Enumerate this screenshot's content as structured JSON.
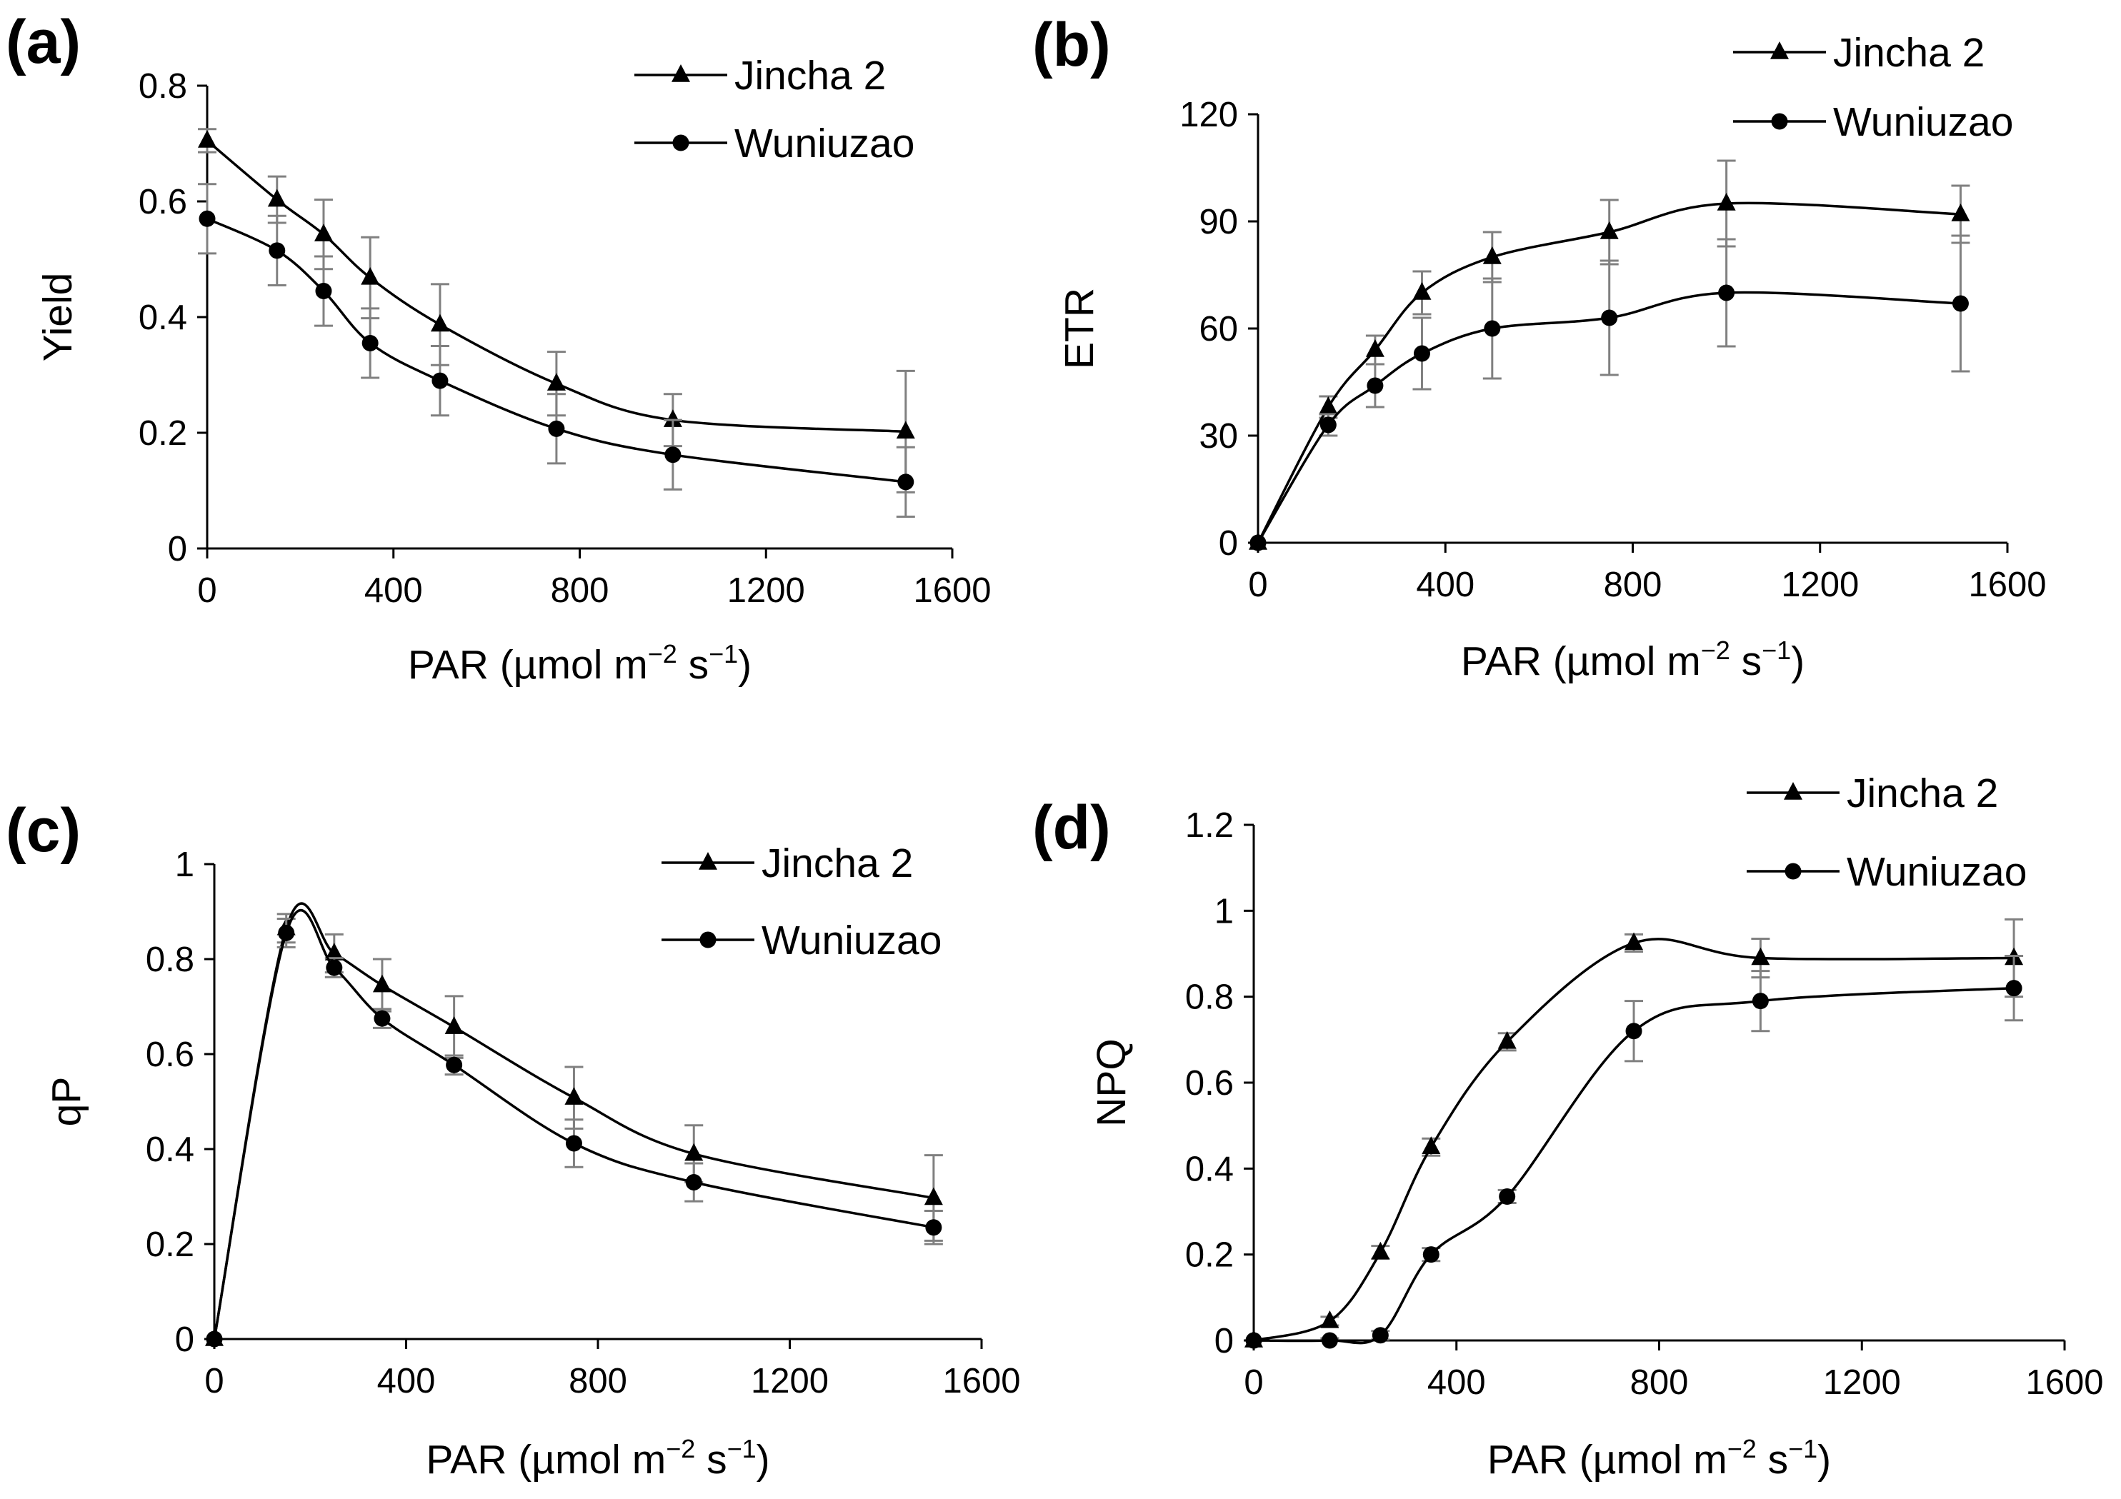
{
  "figure": {
    "colors": {
      "line": "#000000",
      "error_bar": "#808080",
      "background": "#ffffff"
    }
  },
  "chart_data": [
    {
      "type": "line",
      "panel_label": "(a)",
      "title": "",
      "xlabel": "PAR (µmol m",
      "xlabel_exp1": "−2",
      "xlabel_mid": " s",
      "xlabel_exp2": "−1",
      "xlabel_end": ")",
      "ylabel": "Yield",
      "xlim": [
        0,
        1600
      ],
      "ylim": [
        0,
        0.8
      ],
      "xticks": [
        0,
        400,
        800,
        1200,
        1600
      ],
      "xtick_labels": [
        "0",
        "400",
        "800",
        "1200",
        "1600"
      ],
      "yticks": [
        0,
        0.2,
        0.4,
        0.6,
        0.8
      ],
      "ytick_labels": [
        "0",
        "0.2",
        "0.4",
        "0.6",
        "0.8"
      ],
      "legend_position": "top-right",
      "x": [
        0,
        150,
        250,
        350,
        500,
        750,
        1000,
        1500
      ],
      "series": [
        {
          "name": "Jincha 2",
          "marker": "triangle",
          "values": [
            0.705,
            0.603,
            0.543,
            0.468,
            0.387,
            0.285,
            0.222,
            0.202
          ],
          "errors": [
            0.02,
            0.04,
            0.06,
            0.07,
            0.07,
            0.055,
            0.045,
            0.105
          ]
        },
        {
          "name": "Wuniuzao",
          "marker": "circle",
          "values": [
            0.57,
            0.515,
            0.445,
            0.355,
            0.29,
            0.207,
            0.162,
            0.115
          ],
          "errors": [
            0.06,
            0.06,
            0.06,
            0.06,
            0.06,
            0.06,
            0.06,
            0.06
          ]
        }
      ]
    },
    {
      "type": "line",
      "panel_label": "(b)",
      "title": "",
      "xlabel": "PAR (µmol m",
      "xlabel_exp1": "−2",
      "xlabel_mid": " s",
      "xlabel_exp2": "−1",
      "xlabel_end": ")",
      "ylabel": "ETR",
      "xlim": [
        0,
        1600
      ],
      "ylim": [
        0,
        120
      ],
      "xticks": [
        0,
        400,
        800,
        1200,
        1600
      ],
      "xtick_labels": [
        "0",
        "400",
        "800",
        "1200",
        "1600"
      ],
      "yticks": [
        0,
        30,
        60,
        90,
        120
      ],
      "ytick_labels": [
        "0",
        "30",
        "60",
        "90",
        "120"
      ],
      "legend_position": "top-right",
      "x": [
        0,
        150,
        250,
        350,
        500,
        750,
        1000,
        1500
      ],
      "series": [
        {
          "name": "Jincha 2",
          "marker": "triangle",
          "values": [
            0,
            38,
            54,
            70,
            80,
            87,
            95,
            92
          ],
          "errors": [
            0,
            3,
            4,
            6,
            7,
            9,
            12,
            8
          ]
        },
        {
          "name": "Wuniuzao",
          "marker": "circle",
          "values": [
            0,
            33,
            44,
            53,
            60,
            63,
            70,
            67
          ],
          "errors": [
            0,
            3,
            6,
            10,
            14,
            16,
            15,
            19
          ]
        }
      ]
    },
    {
      "type": "line",
      "panel_label": "(c)",
      "title": "",
      "xlabel": "PAR (µmol m",
      "xlabel_exp1": "−2",
      "xlabel_mid": " s",
      "xlabel_exp2": "−1",
      "xlabel_end": ")",
      "ylabel": "qP",
      "xlim": [
        0,
        1600
      ],
      "ylim": [
        0,
        1
      ],
      "xticks": [
        0,
        400,
        800,
        1200,
        1600
      ],
      "xtick_labels": [
        "0",
        "400",
        "800",
        "1200",
        "1600"
      ],
      "yticks": [
        0,
        0.2,
        0.4,
        0.6,
        0.8,
        1
      ],
      "ytick_labels": [
        "0",
        "0.2",
        "0.4",
        "0.6",
        "0.8",
        "1"
      ],
      "legend_position": "top-right",
      "x": [
        0,
        150,
        250,
        350,
        500,
        750,
        1000,
        1500
      ],
      "series": [
        {
          "name": "Jincha 2",
          "marker": "triangle",
          "values": [
            0,
            0.865,
            0.812,
            0.745,
            0.657,
            0.508,
            0.39,
            0.297
          ],
          "errors": [
            0,
            0.03,
            0.04,
            0.055,
            0.065,
            0.065,
            0.06,
            0.09
          ]
        },
        {
          "name": "Wuniuzao",
          "marker": "circle",
          "values": [
            0,
            0.855,
            0.782,
            0.675,
            0.577,
            0.412,
            0.33,
            0.235
          ],
          "errors": [
            0,
            0.03,
            0.02,
            0.02,
            0.02,
            0.05,
            0.04,
            0.035
          ]
        }
      ]
    },
    {
      "type": "line",
      "panel_label": "(d)",
      "title": "",
      "xlabel": "PAR (µmol m",
      "xlabel_exp1": "−2",
      "xlabel_mid": " s",
      "xlabel_exp2": "−1",
      "xlabel_end": ")",
      "ylabel": "NPQ",
      "xlim": [
        0,
        1600
      ],
      "ylim": [
        0,
        1.2
      ],
      "xticks": [
        0,
        400,
        800,
        1200,
        1600
      ],
      "xtick_labels": [
        "0",
        "400",
        "800",
        "1200",
        "1600"
      ],
      "yticks": [
        0,
        0.2,
        0.4,
        0.6,
        0.8,
        1,
        1.2
      ],
      "ytick_labels": [
        "0",
        "0.2",
        "0.4",
        "0.6",
        "0.8",
        "1",
        "1.2"
      ],
      "legend_position": "top-right",
      "x": [
        0,
        150,
        250,
        350,
        500,
        750,
        1000,
        1500
      ],
      "series": [
        {
          "name": "Jincha 2",
          "marker": "triangle",
          "values": [
            0,
            0.045,
            0.205,
            0.45,
            0.695,
            0.925,
            0.89,
            0.89
          ],
          "errors": [
            0,
            0.01,
            0.015,
            0.02,
            0.02,
            0.02,
            0.045,
            0.09
          ]
        },
        {
          "name": "Wuniuzao",
          "marker": "circle",
          "values": [
            0,
            0,
            0.012,
            0.2,
            0.335,
            0.72,
            0.79,
            0.82
          ],
          "errors": [
            0,
            0.005,
            0.01,
            0.015,
            0.015,
            0.07,
            0.07,
            0.075
          ]
        }
      ]
    }
  ]
}
